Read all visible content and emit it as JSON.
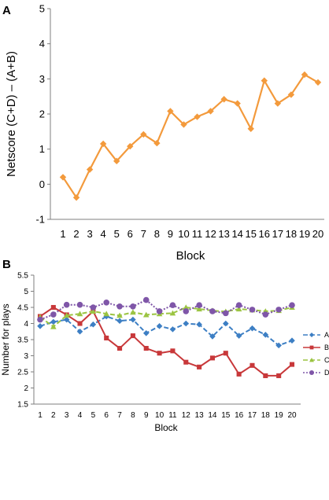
{
  "panel_labels": [
    "A",
    "B"
  ],
  "chart_data": [
    {
      "type": "line",
      "panel": "A",
      "title": "",
      "xlabel": "Block",
      "ylabel": "Netscore (C+D) – (A+B)",
      "categories": [
        "1",
        "2",
        "3",
        "4",
        "5",
        "6",
        "7",
        "8",
        "9",
        "10",
        "11",
        "12",
        "13",
        "14",
        "15",
        "16",
        "17",
        "18",
        "19",
        "20"
      ],
      "ylim": [
        -1,
        5
      ],
      "yticks": [
        "-1",
        "0",
        "1",
        "2",
        "3",
        "4",
        "5"
      ],
      "grid": false,
      "series": [
        {
          "name": "",
          "color": "#f39a3c",
          "marker": "diamond",
          "values": [
            0.2,
            -0.38,
            0.42,
            1.15,
            0.66,
            1.08,
            1.42,
            1.17,
            2.08,
            1.7,
            1.92,
            2.08,
            2.42,
            2.3,
            1.58,
            2.95,
            2.3,
            2.55,
            3.12,
            2.9
          ]
        }
      ]
    },
    {
      "type": "line",
      "panel": "B",
      "title": "",
      "xlabel": "Block",
      "ylabel": "Number for plays",
      "categories": [
        "1",
        "2",
        "3",
        "4",
        "5",
        "6",
        "7",
        "8",
        "9",
        "10",
        "11",
        "12",
        "13",
        "14",
        "15",
        "16",
        "17",
        "18",
        "19",
        "20"
      ],
      "ylim": [
        1.5,
        5.5
      ],
      "yticks": [
        "1.5",
        "2",
        "2.5",
        "3",
        "3.5",
        "4",
        "4.5",
        "5",
        "5.5"
      ],
      "grid": false,
      "legend_position": "right",
      "series": [
        {
          "name": "A",
          "color": "#3d7fc4",
          "marker": "diamond",
          "dash": "dashed",
          "values": [
            3.92,
            4.05,
            4.12,
            3.75,
            3.97,
            4.22,
            4.08,
            4.12,
            3.7,
            3.92,
            3.82,
            4.0,
            3.97,
            3.6,
            4.0,
            3.62,
            3.85,
            3.65,
            3.32,
            3.47
          ]
        },
        {
          "name": "B",
          "color": "#c8383a",
          "marker": "square",
          "dash": "solid",
          "values": [
            4.22,
            4.5,
            4.27,
            4.0,
            4.38,
            3.55,
            3.23,
            3.62,
            3.23,
            3.08,
            3.15,
            2.8,
            2.65,
            2.93,
            3.08,
            2.43,
            2.7,
            2.38,
            2.38,
            2.73
          ]
        },
        {
          "name": "C",
          "color": "#9bc442",
          "marker": "triangle",
          "dash": "dashed",
          "values": [
            4.2,
            3.9,
            4.25,
            4.3,
            4.38,
            4.3,
            4.25,
            4.35,
            4.27,
            4.3,
            4.32,
            4.5,
            4.45,
            4.4,
            4.37,
            4.45,
            4.42,
            4.38,
            4.4,
            4.5
          ]
        },
        {
          "name": "D",
          "color": "#7f56a8",
          "marker": "circle",
          "dash": "dotted",
          "values": [
            4.12,
            4.28,
            4.58,
            4.58,
            4.5,
            4.65,
            4.53,
            4.53,
            4.73,
            4.38,
            4.57,
            4.38,
            4.57,
            4.38,
            4.32,
            4.57,
            4.43,
            4.28,
            4.43,
            4.57
          ]
        }
      ]
    }
  ]
}
